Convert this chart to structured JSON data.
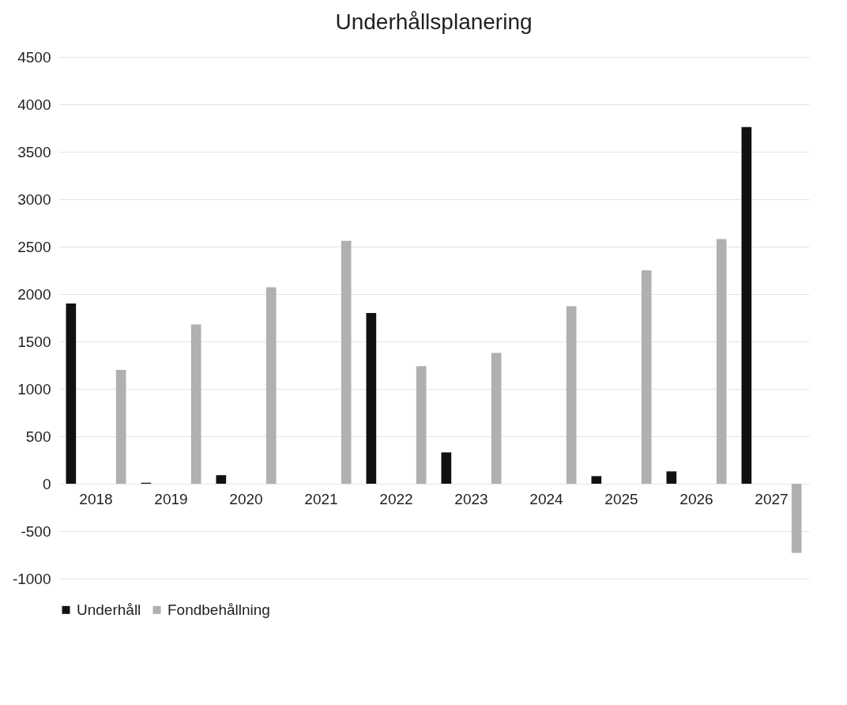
{
  "chart_data": {
    "type": "bar",
    "title": "Underhållsplanering",
    "categories": [
      "2018",
      "2019",
      "2020",
      "2021",
      "2022",
      "2023",
      "2024",
      "2025",
      "2026",
      "2027"
    ],
    "series": [
      {
        "name": "Underhåll",
        "color": "#111111",
        "values": [
          1900,
          10,
          90,
          0,
          1800,
          330,
          0,
          80,
          130,
          3760
        ]
      },
      {
        "name": "Fondbehållning",
        "color": "#b0b0b0",
        "values": [
          1200,
          1680,
          2070,
          2560,
          1240,
          1380,
          1870,
          2250,
          2580,
          -730
        ]
      }
    ],
    "ylim": [
      -1000,
      4500
    ],
    "yticks": [
      -1000,
      -500,
      0,
      500,
      1000,
      1500,
      2000,
      2500,
      3000,
      3500,
      4000,
      4500
    ],
    "grid": "y",
    "legend": "bottom"
  }
}
